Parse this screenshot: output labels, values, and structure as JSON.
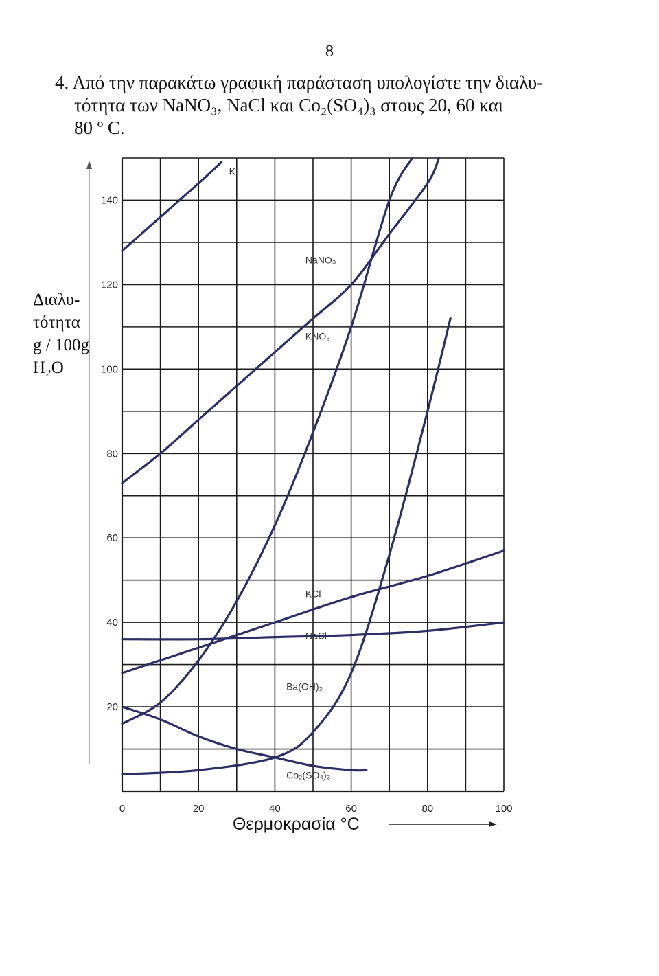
{
  "page": {
    "number": "8",
    "question_number": "4.",
    "question_lines": [
      "Από την παρακάτω γραφική παράσταση υπολογίστε την διαλυ-",
      "τότητα των NaNO₃, NaCl και Co₂(SO₄)₃ στους 20, 60 και",
      "80 º C."
    ]
  },
  "colors": {
    "grid": "#1a1a1a",
    "curve": "#2b2f66",
    "text": "#111111"
  },
  "chart_data": {
    "type": "line",
    "title": "",
    "xlabel": "Θερμοκρασία °C",
    "ylabel_lines": [
      "Διαλυ-",
      "τότητα",
      "g / 100g",
      "H₂O"
    ],
    "xlim": [
      0,
      100
    ],
    "ylim": [
      0,
      150
    ],
    "x_ticks": [
      0,
      20,
      40,
      60,
      80,
      100
    ],
    "x_tick_labels": [
      "0",
      "20",
      "40",
      "60",
      "80",
      "100"
    ],
    "y_ticks": [
      20,
      40,
      60,
      80,
      100,
      120,
      140
    ],
    "y_tick_labels": [
      "20",
      "40",
      "60",
      "80",
      "100",
      "120",
      "140"
    ],
    "grid": true,
    "grid_step": {
      "x": 10,
      "y": 10
    },
    "series": [
      {
        "name": "KI",
        "label_at": [
          28,
          146
        ],
        "x": [
          0,
          10,
          20,
          26
        ],
        "y": [
          128,
          136,
          144,
          149
        ]
      },
      {
        "name": "NaNO₃",
        "label_at": [
          48,
          125
        ],
        "x": [
          0,
          10,
          20,
          30,
          40,
          50,
          60,
          70,
          80,
          83
        ],
        "y": [
          73,
          80,
          88,
          96,
          104,
          112,
          120,
          132,
          144,
          150
        ]
      },
      {
        "name": "KNO₃",
        "label_at": [
          48,
          107
        ],
        "x": [
          0,
          10,
          20,
          30,
          40,
          50,
          60,
          70,
          76
        ],
        "y": [
          16,
          21,
          31,
          45,
          63,
          85,
          110,
          140,
          150
        ]
      },
      {
        "name": "KCl",
        "label_at": [
          48,
          46
        ],
        "x": [
          0,
          20,
          40,
          60,
          80,
          100
        ],
        "y": [
          28,
          34,
          40,
          46,
          51,
          57
        ]
      },
      {
        "name": "NaCl",
        "label_at": [
          48,
          36
        ],
        "x": [
          0,
          20,
          40,
          60,
          80,
          100
        ],
        "y": [
          36,
          36,
          36.5,
          37,
          38,
          40
        ]
      },
      {
        "name": "Ba(OH)₂",
        "label_at": [
          43,
          24
        ],
        "x": [
          0,
          20,
          40,
          50,
          60,
          70,
          80,
          86
        ],
        "y": [
          4,
          5,
          8,
          14,
          28,
          56,
          90,
          112
        ]
      },
      {
        "name": "Co₂(SO₄)₃",
        "label_at": [
          43,
          3
        ],
        "x": [
          0,
          10,
          20,
          30,
          40,
          50,
          60,
          64
        ],
        "y": [
          20,
          17,
          13,
          10,
          8,
          6,
          5,
          5
        ]
      }
    ]
  }
}
